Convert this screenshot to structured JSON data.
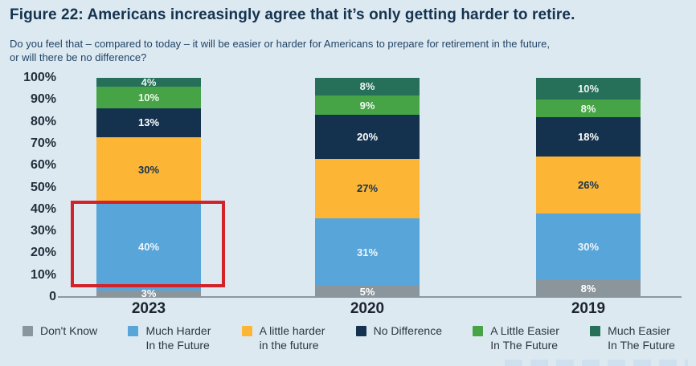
{
  "page": {
    "background": "#dde9f1"
  },
  "header": {
    "figure_label": "Figure 22:",
    "title": " Americans increasingly agree that it’s only getting harder to retire.",
    "subtitle": "Do you feel that – compared to today – it will be easier or harder for Americans to prepare for retirement in the future,\nor will there be no difference?"
  },
  "chart_data": {
    "type": "bar",
    "stacked": true,
    "orientation": "vertical",
    "title": "Figure 22: Americans increasingly agree that it’s only getting harder to retire.",
    "categories": [
      "2023",
      "2020",
      "2019"
    ],
    "series": [
      {
        "name": "Don't Know",
        "color": "#8b959c",
        "label_color": "#ffffff",
        "values": [
          3,
          5,
          8
        ]
      },
      {
        "name": "Much Harder\nIn the Future",
        "color": "#58a5da",
        "label_color": "#eef6fc",
        "values": [
          40,
          31,
          30
        ]
      },
      {
        "name": "A little harder\nin the future",
        "color": "#fdb535",
        "label_color": "#14324e",
        "values": [
          30,
          27,
          26
        ]
      },
      {
        "name": "No Difference",
        "color": "#14324e",
        "label_color": "#ffffff",
        "values": [
          13,
          20,
          18
        ]
      },
      {
        "name": "A Little Easier\nIn The Future",
        "color": "#46a447",
        "label_color": "#eef8ee",
        "values": [
          10,
          9,
          8
        ]
      },
      {
        "name": "Much Easier\nIn The Future",
        "color": "#26705a",
        "label_color": "#eaf5f0",
        "values": [
          4,
          8,
          10
        ]
      }
    ],
    "value_suffix": "%",
    "y_axis": {
      "min": 0,
      "max": 100,
      "tick_step": 10,
      "tick_labels": [
        "100%",
        "90%",
        "80%",
        "70%",
        "60%",
        "50%",
        "40%",
        "30%",
        "20%",
        "10%",
        "0"
      ]
    },
    "grid": false,
    "legend_position": "bottom",
    "annotation": {
      "shape": "red-outline-box",
      "color": "#d2232a",
      "highlights": "2023 'Much Harder In the Future' segment (40%)"
    }
  }
}
